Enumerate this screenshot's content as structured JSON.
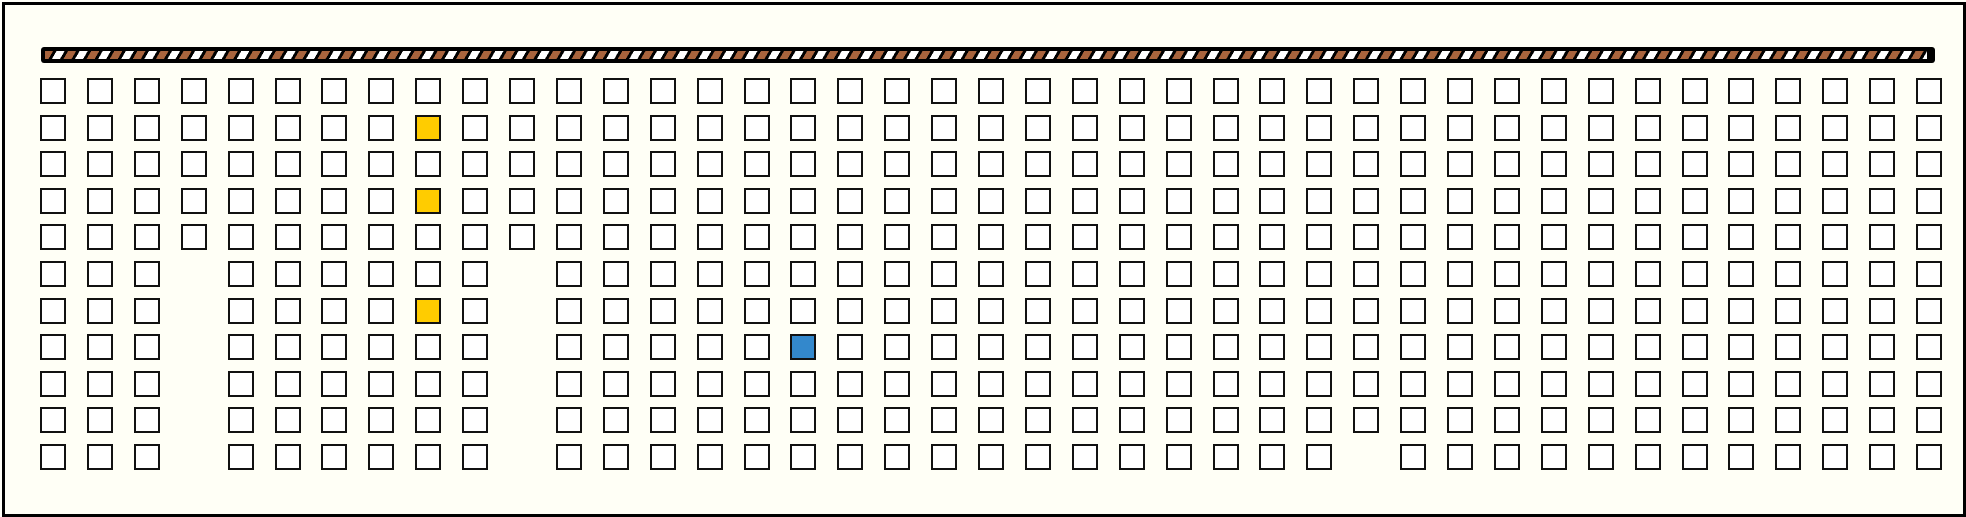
{
  "board": {
    "columns": 41,
    "rows": 11,
    "missing_cells": [
      {
        "col": 3,
        "rows": [
          5,
          6,
          7,
          8,
          9,
          10
        ]
      },
      {
        "col": 10,
        "rows": [
          5,
          6,
          7,
          8,
          9,
          10
        ]
      },
      {
        "col": 28,
        "rows": [
          10
        ]
      }
    ],
    "highlighted_cells": [
      {
        "col": 8,
        "row": 1,
        "color": "#ffcc00"
      },
      {
        "col": 8,
        "row": 3,
        "color": "#ffcc00"
      },
      {
        "col": 8,
        "row": 6,
        "color": "#ffcc00"
      },
      {
        "col": 16,
        "row": 7,
        "color": "#3388cc"
      }
    ],
    "cell_color": "#ffffff"
  },
  "timer_bar": {
    "stripe_colors": [
      "#a8643d",
      "#ffffff"
    ]
  }
}
